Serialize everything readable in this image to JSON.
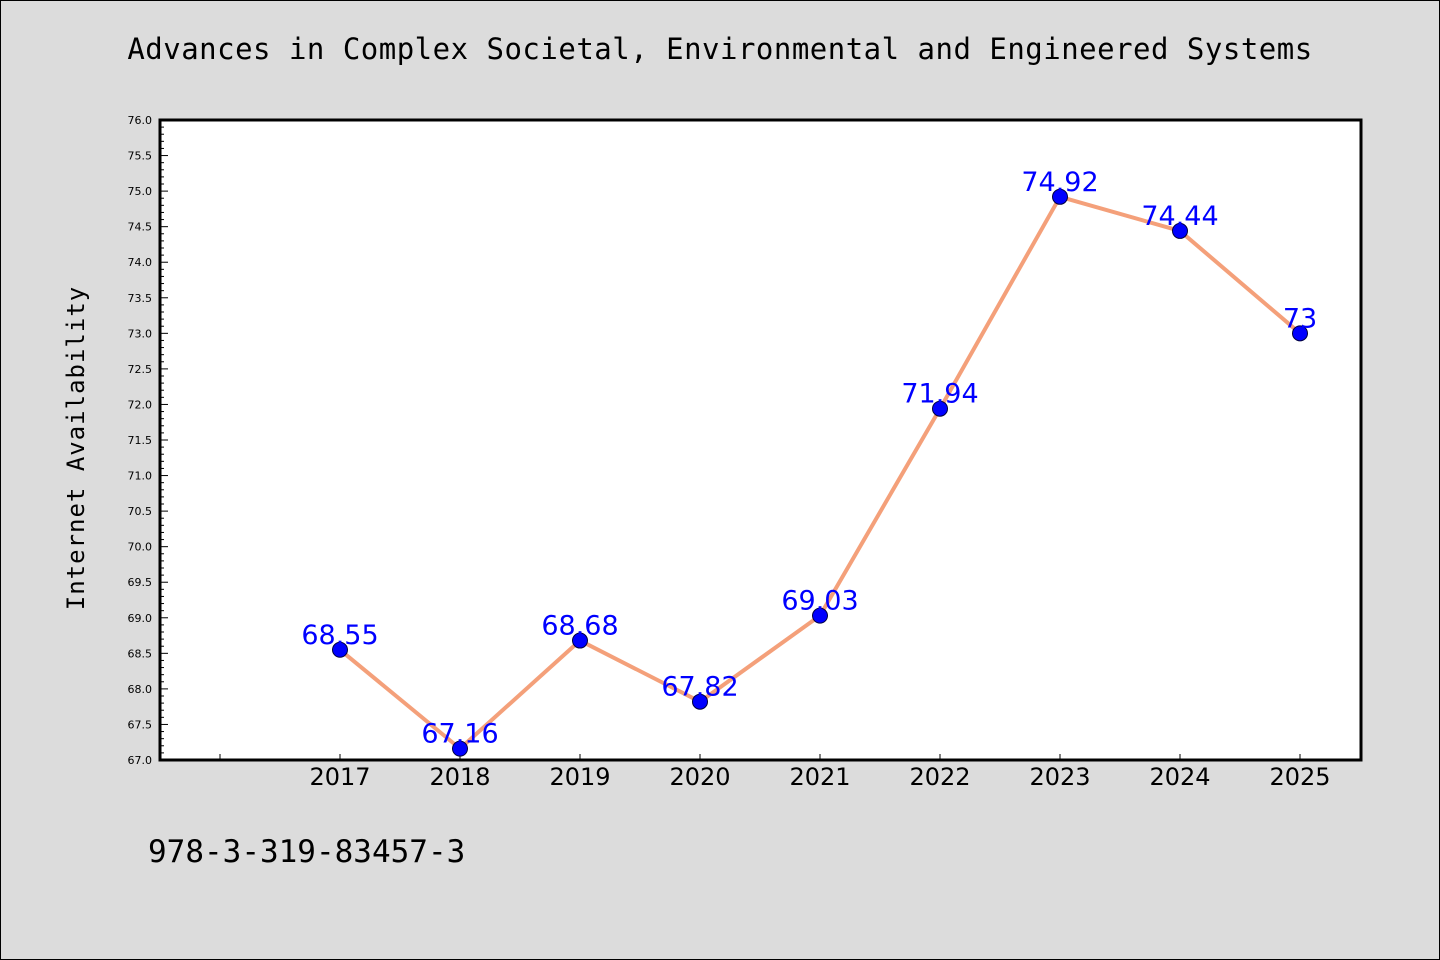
{
  "title": "Advances in Complex Societal, Environmental and Engineered Systems",
  "footnote": "978-3-319-83457-3",
  "colors": {
    "background": "#dcdcdc",
    "plot_area": "#ffffff",
    "line": "#f4a07a",
    "marker": "#0000ff",
    "data_label": "#0000ff"
  },
  "chart_data": {
    "type": "line",
    "title": "Advances in Complex Societal, Environmental and Engineered Systems",
    "xlabel": "",
    "ylabel": "Internet Availability",
    "categories": [
      "2017",
      "2018",
      "2019",
      "2020",
      "2021",
      "2022",
      "2023",
      "2024",
      "2025"
    ],
    "values": [
      68.55,
      67.16,
      68.68,
      67.82,
      69.03,
      71.94,
      74.92,
      74.44,
      73.0
    ],
    "data_labels": [
      "68.55",
      "67.16",
      "68.68",
      "67.82",
      "69.03",
      "71.94",
      "74.92",
      "74.44",
      "73"
    ],
    "ylim": [
      67.0,
      76.0
    ],
    "yticks": [
      "67.0",
      "67.5",
      "68.0",
      "68.5",
      "69.0",
      "69.5",
      "70.0",
      "70.5",
      "71.0",
      "71.5",
      "72.0",
      "72.5",
      "73.0",
      "73.5",
      "74.0",
      "74.5",
      "75.0",
      "75.5",
      "76.0"
    ],
    "grid": false,
    "legend": "none"
  }
}
